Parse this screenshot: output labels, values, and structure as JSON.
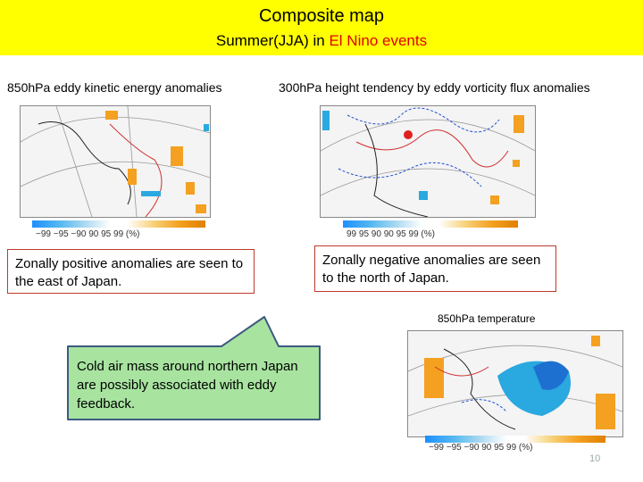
{
  "header": {
    "title": "Composite map",
    "subtitle_prefix": "Summer(JJA) in ",
    "subtitle_highlight": "El Nino events",
    "highlight_color": "#e00000",
    "background_color": "#ffff00"
  },
  "panels": {
    "left_label": "850hPa eddy kinetic energy anomalies",
    "middle_label": "300hPa height tendency by eddy vorticity flux anomalies",
    "bottom_label": "850hPa temperature"
  },
  "colorbars": {
    "left_ticks": "−99  −95  −90   90    95    99  (%)",
    "middle_ticks": "99    95    90    90    95    99  (%)",
    "bottom_ticks": "−99  −95  −90   90    95    99  (%)"
  },
  "boxes": {
    "left_text": "Zonally positive anomalies are seen to the east of Japan.",
    "right_text": "Zonally negative anomalies are seen to the north of Japan.",
    "border_color": "#c0392b"
  },
  "callout": {
    "text": "Cold air mass around northern Japan are possibly associated with eddy feedback.",
    "fill_color": "#a8e4a0",
    "border_color": "#3d5a80"
  },
  "page_number": "10"
}
